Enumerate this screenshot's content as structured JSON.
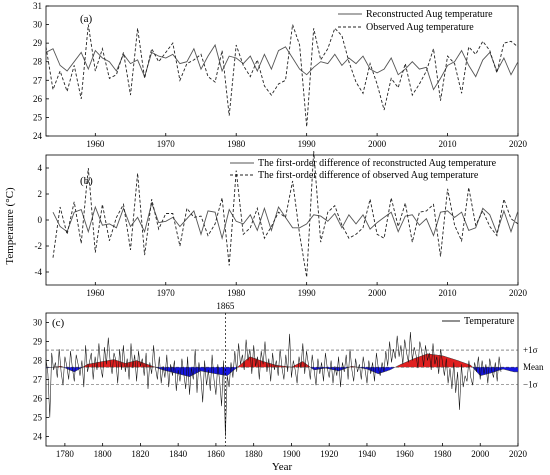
{
  "figure": {
    "ylabel": "Temperature (°C)",
    "xlabel": "Year"
  },
  "chart_data": [
    {
      "type": "line",
      "label": "(a)",
      "xlim": [
        1953,
        2020
      ],
      "ylim": [
        24,
        31
      ],
      "xticks": [
        1960,
        1970,
        1980,
        1990,
        2000,
        2010,
        2020
      ],
      "yticks": [
        24,
        25,
        26,
        27,
        28,
        29,
        30,
        31
      ],
      "legend_position": "top-right",
      "x_start": 1953,
      "series": [
        {
          "name": "Reconstructed Aug temperature",
          "style": "solid",
          "color": "#555555",
          "values": [
            28.5,
            28.7,
            27.8,
            27.5,
            28.0,
            28.5,
            27.6,
            28.6,
            28.2,
            28.0,
            27.5,
            28.4,
            27.9,
            28.1,
            27.2,
            28.5,
            28.3,
            28.2,
            28.4,
            27.9,
            28.0,
            28.7,
            27.6,
            28.3,
            28.9,
            27.5,
            28.3,
            28.2,
            27.9,
            28.3,
            27.5,
            28.4,
            27.6,
            28.6,
            28.8,
            28.2,
            27.6,
            27.3,
            27.7,
            28.0,
            27.9,
            28.4,
            27.8,
            28.2,
            27.9,
            28.3,
            27.6,
            27.4,
            27.6,
            28.2,
            27.3,
            27.6,
            28.0,
            27.6,
            27.7,
            26.5,
            27.1,
            27.8,
            28.0,
            28.6,
            27.8,
            27.2,
            28.1,
            28.5,
            27.5,
            28.2,
            27.3,
            28.0
          ]
        },
        {
          "name": "Observed Aug temperature",
          "style": "dashed",
          "color": "#222222",
          "values": [
            28.8,
            26.5,
            27.5,
            26.4,
            27.8,
            26.0,
            30.0,
            27.5,
            28.7,
            27.1,
            27.3,
            28.5,
            26.2,
            29.8,
            27.1,
            28.7,
            28.0,
            28.5,
            29.0,
            27.0,
            27.9,
            28.1,
            28.4,
            27.2,
            26.9,
            28.6,
            25.1,
            28.9,
            27.8,
            27.2,
            28.1,
            26.7,
            26.2,
            26.8,
            27.0,
            30.0,
            28.9,
            24.5,
            29.8,
            28.1,
            28.7,
            29.8,
            29.4,
            28.0,
            26.9,
            26.3,
            27.9,
            26.8,
            25.4,
            27.1,
            26.6,
            27.9,
            26.2,
            26.8,
            27.5,
            28.7,
            25.9,
            28.3,
            27.9,
            26.3,
            28.8,
            28.4,
            29.1,
            28.6,
            27.4,
            29.0,
            29.1,
            28.8
          ]
        }
      ]
    },
    {
      "type": "line",
      "label": "(b)",
      "xlim": [
        1953,
        2020
      ],
      "ylim": [
        -5,
        5
      ],
      "xticks": [
        1960,
        1970,
        1980,
        1990,
        2000,
        2010,
        2020
      ],
      "yticks": [
        -4,
        -2,
        0,
        2,
        4
      ],
      "legend_position": "top-right",
      "x_start": 1954,
      "series": [
        {
          "name": "The first-order difference of reconstructed Aug temperature",
          "style": "solid",
          "color": "#555555",
          "values": [
            0.6,
            -0.5,
            -0.9,
            0.6,
            0.8,
            -0.9,
            1.0,
            -0.4,
            -0.3,
            -0.6,
            0.9,
            -0.5,
            0.2,
            -0.9,
            1.3,
            -0.2,
            -0.1,
            0.2,
            -0.5,
            0.1,
            0.7,
            -1.1,
            0.7,
            0.6,
            -1.4,
            0.8,
            -0.1,
            -0.3,
            0.4,
            -0.8,
            0.9,
            -0.8,
            1.0,
            0.2,
            -0.6,
            -0.6,
            -0.3,
            0.4,
            0.3,
            -0.1,
            0.5,
            -0.6,
            0.4,
            -0.3,
            0.4,
            -0.7,
            -0.2,
            0.2,
            0.6,
            -0.9,
            0.3,
            0.4,
            -0.4,
            0.1,
            -1.2,
            0.6,
            0.7,
            0.2,
            0.6,
            -0.8,
            -0.6,
            0.9,
            0.4,
            -1.0,
            0.7,
            -0.9,
            0.7
          ]
        },
        {
          "name": "The first-order difference of observed Aug temperature",
          "style": "dashed",
          "color": "#222222",
          "values": [
            -2.9,
            1.0,
            -1.1,
            1.4,
            -1.8,
            4.0,
            -2.5,
            1.2,
            -1.6,
            0.2,
            1.2,
            -2.3,
            3.6,
            -2.7,
            1.6,
            -0.7,
            0.5,
            0.5,
            -2.0,
            0.9,
            0.2,
            0.3,
            -1.2,
            -0.3,
            1.7,
            -3.5,
            3.8,
            -1.1,
            -0.6,
            0.9,
            -1.4,
            -0.5,
            0.6,
            0.2,
            3.0,
            -1.1,
            -4.4,
            5.3,
            -1.7,
            0.6,
            1.1,
            -0.4,
            -1.4,
            -1.1,
            -0.6,
            1.6,
            -1.1,
            -1.4,
            1.7,
            -0.5,
            1.3,
            -1.7,
            0.6,
            0.7,
            1.2,
            -2.8,
            2.4,
            -0.4,
            -1.6,
            2.5,
            -0.4,
            0.7,
            -0.5,
            -1.2,
            1.6,
            0.1,
            -0.3
          ]
        }
      ]
    },
    {
      "type": "line",
      "label": "(c)",
      "xlim": [
        1770,
        2020
      ],
      "ylim": [
        23.5,
        30.5
      ],
      "xticks": [
        1780,
        1800,
        1820,
        1840,
        1860,
        1880,
        1900,
        1920,
        1940,
        1960,
        1980,
        2000,
        2020
      ],
      "yticks": [
        24,
        25,
        26,
        27,
        28,
        29,
        30
      ],
      "legend_position": "top-right",
      "series_name": "Temperature",
      "mean": 27.65,
      "upper_1sigma": 28.55,
      "lower_1sigma": 26.75,
      "upper_label": "+1σ",
      "mean_label": "Mean",
      "lower_label": "−1σ",
      "event_year": 1865,
      "event_label": "1865",
      "fill_above_color": "#e02020",
      "fill_below_color": "#1515e0",
      "smooth_years": [
        1770,
        1778,
        1785,
        1792,
        1800,
        1806,
        1812,
        1818,
        1825,
        1832,
        1840,
        1846,
        1852,
        1860,
        1866,
        1872,
        1878,
        1885,
        1892,
        1900,
        1906,
        1912,
        1918,
        1925,
        1932,
        1940,
        1946,
        1952,
        1958,
        1965,
        1972,
        1980,
        1988,
        1995,
        2000,
        2006,
        2012,
        2018
      ],
      "smooth_values": [
        27.6,
        27.7,
        27.4,
        27.8,
        27.95,
        28.05,
        27.85,
        28.0,
        27.75,
        27.5,
        27.3,
        27.15,
        27.45,
        27.3,
        27.2,
        27.7,
        28.2,
        27.95,
        27.75,
        27.65,
        27.95,
        27.5,
        27.6,
        27.45,
        27.7,
        27.55,
        27.3,
        27.5,
        27.8,
        28.1,
        28.35,
        28.25,
        28.0,
        27.75,
        27.2,
        27.35,
        27.55,
        27.4
      ],
      "raw_values": [
        28.1,
        27.3,
        25.0,
        28.4,
        27.5,
        27.9,
        27.1,
        28.6,
        27.4,
        26.7,
        28.2,
        27.7,
        27.0,
        28.5,
        27.6,
        26.9,
        28.3,
        27.8,
        27.2,
        28.0,
        26.6,
        28.8,
        27.4,
        27.9,
        28.4,
        27.0,
        28.2,
        27.5,
        28.9,
        27.6,
        27.1,
        28.7,
        27.8,
        29.2,
        27.9,
        27.3,
        28.4,
        28.0,
        26.8,
        28.6,
        27.5,
        28.8,
        27.4,
        28.1,
        27.0,
        28.9,
        27.6,
        28.3,
        26.9,
        28.5,
        27.7,
        28.1,
        27.2,
        28.4,
        26.5,
        27.9,
        27.3,
        28.8,
        27.6,
        27.0,
        28.2,
        26.8,
        27.7,
        27.1,
        28.3,
        26.6,
        27.8,
        27.2,
        28.0,
        26.4,
        27.5,
        26.9,
        28.1,
        27.3,
        26.5,
        28.2,
        26.2,
        27.6,
        27.0,
        28.6,
        26.3,
        27.9,
        27.2,
        25.8,
        28.0,
        26.7,
        27.5,
        26.4,
        28.3,
        27.0,
        26.2,
        27.8,
        26.9,
        25.6,
        28.0,
        24.0,
        27.2,
        26.6,
        27.9,
        27.1,
        28.5,
        27.4,
        28.9,
        27.8,
        28.3,
        27.5,
        29.1,
        28.0,
        28.6,
        27.3,
        28.8,
        27.7,
        28.2,
        27.0,
        28.5,
        27.8,
        29.0,
        27.4,
        28.1,
        26.9,
        28.4,
        27.5,
        28.0,
        27.2,
        28.6,
        27.6,
        27.0,
        28.3,
        27.4,
        29.4,
        27.1,
        28.0,
        27.5,
        26.8,
        28.2,
        27.6,
        28.9,
        27.3,
        28.5,
        27.8,
        27.0,
        28.3,
        27.5,
        26.7,
        28.1,
        27.3,
        27.9,
        26.9,
        28.4,
        27.6,
        27.1,
        28.0,
        26.8,
        27.7,
        27.2,
        28.2,
        26.6,
        27.9,
        27.4,
        28.3,
        27.0,
        28.6,
        27.5,
        26.9,
        28.1,
        27.4,
        27.8,
        27.0,
        28.2,
        27.5,
        26.8,
        28.0,
        27.3,
        27.9,
        26.9,
        28.4,
        27.6,
        27.2,
        27.9,
        27.4,
        28.5,
        27.7,
        29.0,
        27.9,
        28.6,
        28.1,
        29.3,
        28.2,
        28.8,
        27.8,
        29.1,
        28.4,
        27.9,
        29.5,
        28.0,
        28.7,
        28.3,
        27.6,
        29.0,
        28.5,
        27.7,
        28.8,
        28.0,
        28.4,
        27.5,
        28.9,
        27.8,
        28.2,
        27.3,
        28.6,
        27.9,
        27.2,
        28.1,
        26.8,
        27.6,
        26.5,
        27.9,
        26.3,
        27.4,
        25.4,
        27.8,
        26.6,
        27.2,
        26.9,
        28.0,
        27.1,
        26.7,
        27.9,
        27.4,
        28.2,
        27.0,
        28.0,
        27.3,
        27.8,
        26.8,
        28.1,
        27.5,
        27.1,
        27.9,
        26.9,
        28.2,
        27.4
      ]
    }
  ]
}
